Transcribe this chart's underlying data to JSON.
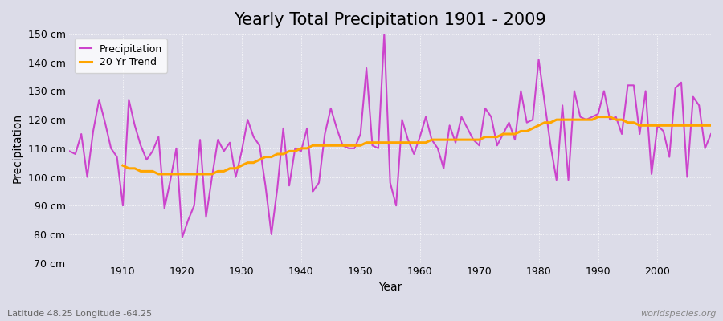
{
  "title": "Yearly Total Precipitation 1901 - 2009",
  "xlabel": "Year",
  "ylabel": "Precipitation",
  "subtitle": "Latitude 48.25 Longitude -64.25",
  "watermark": "worldspecies.org",
  "years": [
    1901,
    1902,
    1903,
    1904,
    1905,
    1906,
    1907,
    1908,
    1909,
    1910,
    1911,
    1912,
    1913,
    1914,
    1915,
    1916,
    1917,
    1918,
    1919,
    1920,
    1921,
    1922,
    1923,
    1924,
    1925,
    1926,
    1927,
    1928,
    1929,
    1930,
    1931,
    1932,
    1933,
    1934,
    1935,
    1936,
    1937,
    1938,
    1939,
    1940,
    1941,
    1942,
    1943,
    1944,
    1945,
    1946,
    1947,
    1948,
    1949,
    1950,
    1951,
    1952,
    1953,
    1954,
    1955,
    1956,
    1957,
    1958,
    1959,
    1960,
    1961,
    1962,
    1963,
    1964,
    1965,
    1966,
    1967,
    1968,
    1969,
    1970,
    1971,
    1972,
    1973,
    1974,
    1975,
    1976,
    1977,
    1978,
    1979,
    1980,
    1981,
    1982,
    1983,
    1984,
    1985,
    1986,
    1987,
    1988,
    1989,
    1990,
    1991,
    1992,
    1993,
    1994,
    1995,
    1996,
    1997,
    1998,
    1999,
    2000,
    2001,
    2002,
    2003,
    2004,
    2005,
    2006,
    2007,
    2008,
    2009
  ],
  "precipitation": [
    109,
    108,
    115,
    100,
    116,
    127,
    119,
    110,
    107,
    90,
    127,
    118,
    111,
    106,
    109,
    114,
    89,
    99,
    110,
    79,
    85,
    90,
    113,
    86,
    100,
    113,
    109,
    112,
    100,
    109,
    120,
    114,
    111,
    97,
    80,
    96,
    117,
    97,
    110,
    109,
    117,
    95,
    98,
    115,
    124,
    117,
    111,
    110,
    110,
    115,
    138,
    111,
    110,
    150,
    98,
    90,
    120,
    113,
    108,
    114,
    121,
    113,
    110,
    103,
    118,
    112,
    121,
    117,
    113,
    111,
    124,
    121,
    111,
    115,
    119,
    113,
    130,
    119,
    120,
    141,
    126,
    111,
    99,
    125,
    99,
    130,
    121,
    120,
    121,
    122,
    130,
    120,
    121,
    115,
    132,
    132,
    115,
    130,
    101,
    118,
    116,
    107,
    131,
    133,
    100,
    128,
    125,
    110,
    115
  ],
  "trend_years": [
    1910,
    1911,
    1912,
    1913,
    1914,
    1915,
    1916,
    1917,
    1918,
    1919,
    1920,
    1921,
    1922,
    1923,
    1924,
    1925,
    1926,
    1927,
    1928,
    1929,
    1930,
    1931,
    1932,
    1933,
    1934,
    1935,
    1936,
    1937,
    1938,
    1939,
    1940,
    1941,
    1942,
    1943,
    1944,
    1945,
    1946,
    1947,
    1948,
    1949,
    1950,
    1951,
    1952,
    1953,
    1954,
    1955,
    1956,
    1957,
    1958,
    1959,
    1960,
    1961,
    1962,
    1963,
    1964,
    1965,
    1966,
    1967,
    1968,
    1969,
    1970,
    1971,
    1972,
    1973,
    1974,
    1975,
    1976,
    1977,
    1978,
    1979,
    1980,
    1981,
    1982,
    1983,
    1984,
    1985,
    1986,
    1987,
    1988,
    1989,
    1990,
    1991,
    1992,
    1993,
    1994,
    1995,
    1996,
    1997,
    1998,
    1999,
    2000,
    2001,
    2002,
    2003,
    2004,
    2005,
    2006,
    2007,
    2008,
    2009
  ],
  "trend": [
    104,
    103,
    103,
    102,
    102,
    102,
    101,
    101,
    101,
    101,
    101,
    101,
    101,
    101,
    101,
    101,
    102,
    102,
    103,
    103,
    104,
    105,
    105,
    106,
    107,
    107,
    108,
    108,
    109,
    109,
    110,
    110,
    111,
    111,
    111,
    111,
    111,
    111,
    111,
    111,
    111,
    112,
    112,
    112,
    112,
    112,
    112,
    112,
    112,
    112,
    112,
    112,
    113,
    113,
    113,
    113,
    113,
    113,
    113,
    113,
    113,
    114,
    114,
    114,
    115,
    115,
    115,
    116,
    116,
    117,
    118,
    119,
    119,
    120,
    120,
    120,
    120,
    120,
    120,
    120,
    121,
    121,
    121,
    120,
    120,
    119,
    119,
    118,
    118,
    118,
    118,
    118,
    118,
    118,
    118,
    118,
    118,
    118,
    118,
    118
  ],
  "ylim": [
    70,
    150
  ],
  "yticks": [
    70,
    80,
    90,
    100,
    110,
    120,
    130,
    140,
    150
  ],
  "ytick_labels": [
    "70 cm",
    "80 cm",
    "90 cm",
    "100 cm",
    "110 cm",
    "120 cm",
    "130 cm",
    "140 cm",
    "150 cm"
  ],
  "xlim": [
    1901,
    2009
  ],
  "xticks": [
    1910,
    1920,
    1930,
    1940,
    1950,
    1960,
    1970,
    1980,
    1990,
    2000
  ],
  "fig_bg_color": "#dcdce8",
  "plot_bg_color": "#dcdce8",
  "precip_color": "#cc44cc",
  "trend_color": "#ffa500",
  "precip_linewidth": 1.5,
  "trend_linewidth": 2.2,
  "title_fontsize": 15,
  "axis_label_fontsize": 10,
  "tick_fontsize": 9,
  "legend_fontsize": 9,
  "subtitle_color": "#666666",
  "watermark_color": "#888888"
}
